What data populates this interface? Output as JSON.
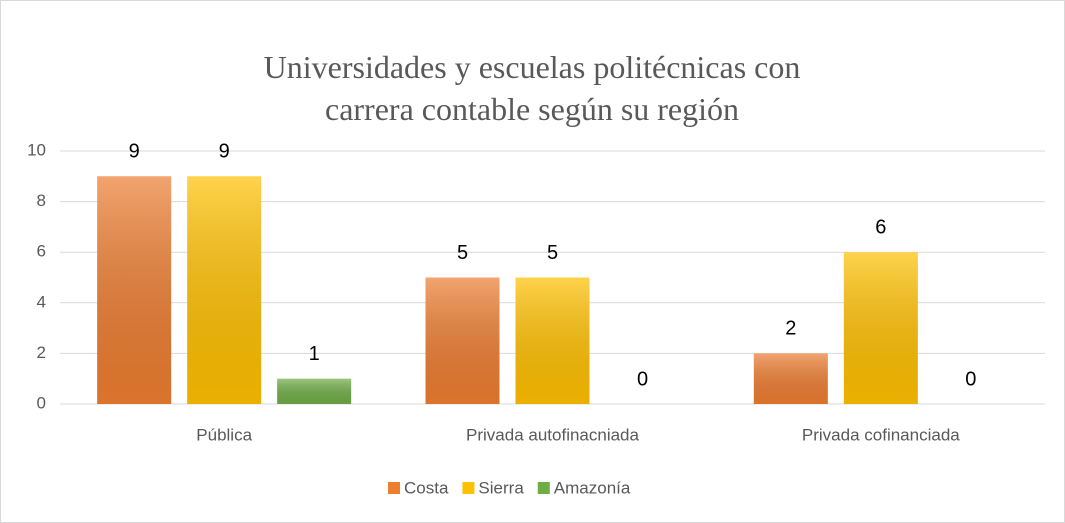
{
  "chart_data": {
    "type": "bar",
    "title": "Universidades y escuelas politécnicas con carrera contable según su región",
    "categories": [
      "Pública",
      "Privada autofinacniada",
      "Privada cofinanciada"
    ],
    "series": [
      {
        "name": "Costa",
        "color": "#ed7d31",
        "values": [
          9,
          5,
          2
        ]
      },
      {
        "name": "Sierra",
        "color": "#ffc000",
        "values": [
          9,
          5,
          6
        ]
      },
      {
        "name": "Amazonía",
        "color": "#70ad47",
        "values": [
          1,
          0,
          0
        ]
      }
    ],
    "ylim": [
      0,
      10
    ],
    "yticks": [
      0,
      2,
      4,
      6,
      8,
      10
    ],
    "grid": true,
    "legend": "bottom"
  }
}
